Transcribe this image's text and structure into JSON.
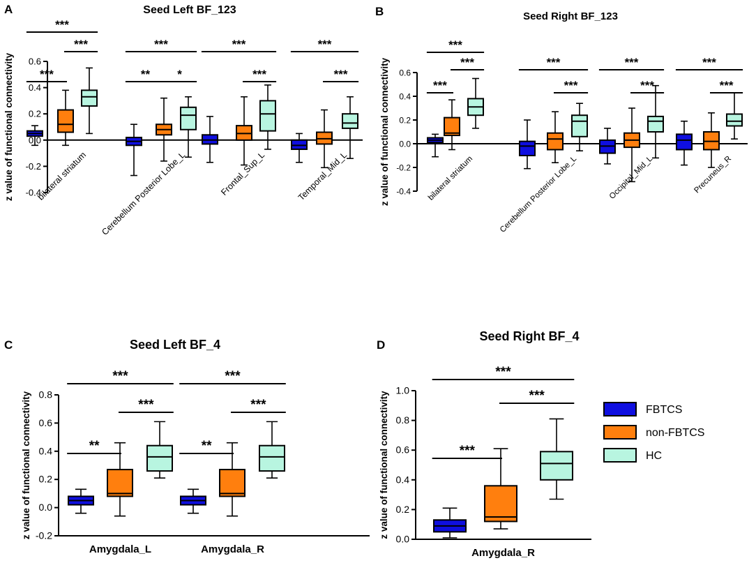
{
  "figure": {
    "legend": [
      {
        "name": "FBTCS",
        "color": "#0f0fe0"
      },
      {
        "name": "non-FBTCS",
        "color": "#ff7f0e"
      },
      {
        "name": "HC",
        "color": "#b8f5e0"
      }
    ]
  },
  "chart_data": [
    {
      "panel": "A",
      "type": "boxplot",
      "title": "Seed Left BF_123",
      "ylabel": "z value of functional connectivity",
      "ylim": [
        -0.4,
        0.6
      ],
      "yticks": [
        -0.4,
        -0.2,
        0.0,
        0.2,
        0.4,
        0.6
      ],
      "ytick_labels": [
        "-0.4",
        "-0.2",
        "0.0",
        "0.2",
        "0.4",
        "0.6"
      ],
      "categories": [
        "bilateral striatum",
        "Cerebellum Posterior Lobe_L",
        "Frontal_Sup_L",
        "Temporal_Mid_L"
      ],
      "series": [
        {
          "name": "FBTCS",
          "stats": [
            {
              "min": -0.04,
              "q1": 0.03,
              "median": 0.05,
              "q3": 0.07,
              "max": 0.11
            },
            {
              "min": -0.27,
              "q1": -0.04,
              "median": -0.01,
              "q3": 0.02,
              "max": 0.12
            },
            {
              "min": -0.17,
              "q1": -0.03,
              "median": 0.0,
              "q3": 0.04,
              "max": 0.18
            },
            {
              "min": -0.17,
              "q1": -0.07,
              "median": -0.04,
              "q3": 0.0,
              "max": 0.05
            }
          ]
        },
        {
          "name": "non-FBTCS",
          "stats": [
            {
              "min": -0.04,
              "q1": 0.06,
              "median": 0.12,
              "q3": 0.23,
              "max": 0.38
            },
            {
              "min": -0.16,
              "q1": 0.04,
              "median": 0.08,
              "q3": 0.12,
              "max": 0.32
            },
            {
              "min": -0.19,
              "q1": 0.0,
              "median": 0.05,
              "q3": 0.11,
              "max": 0.33
            },
            {
              "min": -0.21,
              "q1": -0.03,
              "median": 0.01,
              "q3": 0.06,
              "max": 0.23
            }
          ]
        },
        {
          "name": "HC",
          "stats": [
            {
              "min": 0.05,
              "q1": 0.26,
              "median": 0.33,
              "q3": 0.38,
              "max": 0.55
            },
            {
              "min": -0.13,
              "q1": 0.08,
              "median": 0.19,
              "q3": 0.25,
              "max": 0.33
            },
            {
              "min": -0.07,
              "q1": 0.07,
              "median": 0.2,
              "q3": 0.3,
              "max": 0.42
            },
            {
              "min": -0.14,
              "q1": 0.09,
              "median": 0.13,
              "q3": 0.2,
              "max": 0.33
            }
          ]
        }
      ],
      "annotations": [
        {
          "cat": 0,
          "from": 0,
          "to": 2,
          "label": "***",
          "level": 3
        },
        {
          "cat": 0,
          "from": 1,
          "to": 2,
          "label": "***",
          "level": 2
        },
        {
          "cat": 0,
          "from": 0,
          "to": 1,
          "label": "***",
          "level": 1
        },
        {
          "cat": 1,
          "from": 0,
          "to": 2,
          "label": "***",
          "level": 2
        },
        {
          "cat": 1,
          "from": 0,
          "to": 1,
          "label": "**",
          "level": 1
        },
        {
          "cat": 1,
          "from": 1,
          "to": 2,
          "label": "*",
          "level": 1
        },
        {
          "cat": 2,
          "from": 0,
          "to": 2,
          "label": "***",
          "level": 2
        },
        {
          "cat": 2,
          "from": 1,
          "to": 2,
          "label": "***",
          "level": 1
        },
        {
          "cat": 3,
          "from": 0,
          "to": 2,
          "label": "***",
          "level": 2
        },
        {
          "cat": 3,
          "from": 1,
          "to": 2,
          "label": "***",
          "level": 1
        }
      ]
    },
    {
      "panel": "B",
      "type": "boxplot",
      "title": "Seed Right BF_123",
      "ylabel": "z value of functional connectivity",
      "ylim": [
        -0.4,
        0.6
      ],
      "yticks": [
        -0.4,
        -0.2,
        0.0,
        0.2,
        0.4,
        0.6
      ],
      "ytick_labels": [
        "-0.4",
        "-0.2",
        "0.0",
        "0.2",
        "0.4",
        "0.6"
      ],
      "categories": [
        "bilateral striatum",
        "Cerebellum Posterior Lobe_L",
        "Occipital_Mid_L",
        "Precuneus_R"
      ],
      "series": [
        {
          "name": "FBTCS",
          "stats": [
            {
              "min": -0.11,
              "q1": 0.01,
              "median": 0.03,
              "q3": 0.05,
              "max": 0.08
            },
            {
              "min": -0.21,
              "q1": -0.1,
              "median": -0.02,
              "q3": 0.02,
              "max": 0.2
            },
            {
              "min": -0.17,
              "q1": -0.08,
              "median": -0.02,
              "q3": 0.03,
              "max": 0.13
            },
            {
              "min": -0.18,
              "q1": -0.05,
              "median": 0.03,
              "q3": 0.08,
              "max": 0.19
            }
          ]
        },
        {
          "name": "non-FBTCS",
          "stats": [
            {
              "min": -0.05,
              "q1": 0.07,
              "median": 0.09,
              "q3": 0.22,
              "max": 0.37
            },
            {
              "min": -0.16,
              "q1": -0.05,
              "median": 0.04,
              "q3": 0.09,
              "max": 0.27
            },
            {
              "min": -0.32,
              "q1": -0.03,
              "median": 0.03,
              "q3": 0.09,
              "max": 0.3
            },
            {
              "min": -0.2,
              "q1": -0.05,
              "median": 0.02,
              "q3": 0.1,
              "max": 0.26
            }
          ]
        },
        {
          "name": "HC",
          "stats": [
            {
              "min": 0.13,
              "q1": 0.24,
              "median": 0.31,
              "q3": 0.38,
              "max": 0.55
            },
            {
              "min": -0.06,
              "q1": 0.06,
              "median": 0.19,
              "q3": 0.24,
              "max": 0.34
            },
            {
              "min": -0.12,
              "q1": 0.1,
              "median": 0.19,
              "q3": 0.23,
              "max": 0.49
            },
            {
              "min": 0.04,
              "q1": 0.15,
              "median": 0.19,
              "q3": 0.25,
              "max": 0.43
            }
          ]
        }
      ],
      "annotations": [
        {
          "cat": 0,
          "from": 0,
          "to": 2,
          "label": "***",
          "level": 3
        },
        {
          "cat": 0,
          "from": 1,
          "to": 2,
          "label": "***",
          "level": 2
        },
        {
          "cat": 0,
          "from": 0,
          "to": 1,
          "label": "***",
          "level": 1
        },
        {
          "cat": 1,
          "from": 0,
          "to": 2,
          "label": "***",
          "level": 2
        },
        {
          "cat": 1,
          "from": 1,
          "to": 2,
          "label": "***",
          "level": 1
        },
        {
          "cat": 2,
          "from": 0,
          "to": 2,
          "label": "***",
          "level": 2
        },
        {
          "cat": 2,
          "from": 1,
          "to": 2,
          "label": "***",
          "level": 1
        },
        {
          "cat": 3,
          "from": 0,
          "to": 2,
          "label": "***",
          "level": 2
        },
        {
          "cat": 3,
          "from": 1,
          "to": 2,
          "label": "***",
          "level": 1
        }
      ]
    },
    {
      "panel": "C",
      "type": "boxplot",
      "title": "Seed Left BF_4",
      "ylabel": "z value of functional connectivity",
      "ylim": [
        -0.2,
        0.8
      ],
      "yticks": [
        -0.2,
        0.0,
        0.2,
        0.4,
        0.6,
        0.8
      ],
      "ytick_labels": [
        "-0.2",
        "0.0",
        "0.2",
        "0.4",
        "0.6",
        "0.8"
      ],
      "categories": [
        "Amygdala_L",
        "Amygdala_R"
      ],
      "series": [
        {
          "name": "FBTCS",
          "stats": [
            {
              "min": -0.04,
              "q1": 0.02,
              "median": 0.05,
              "q3": 0.08,
              "max": 0.13
            },
            {
              "min": -0.04,
              "q1": 0.02,
              "median": 0.05,
              "q3": 0.08,
              "max": 0.13
            }
          ]
        },
        {
          "name": "non-FBTCS",
          "stats": [
            {
              "min": -0.06,
              "q1": 0.08,
              "median": 0.1,
              "q3": 0.27,
              "max": 0.46
            },
            {
              "min": -0.06,
              "q1": 0.08,
              "median": 0.1,
              "q3": 0.27,
              "max": 0.46
            }
          ]
        },
        {
          "name": "HC",
          "stats": [
            {
              "min": 0.21,
              "q1": 0.26,
              "median": 0.36,
              "q3": 0.44,
              "max": 0.61
            },
            {
              "min": 0.21,
              "q1": 0.26,
              "median": 0.36,
              "q3": 0.44,
              "max": 0.61
            }
          ]
        }
      ],
      "annotations": [
        {
          "cat": 0,
          "from": 0,
          "to": 2,
          "label": "***",
          "level": 3
        },
        {
          "cat": 0,
          "from": 1,
          "to": 2,
          "label": "***",
          "level": 2
        },
        {
          "cat": 0,
          "from": 0,
          "to": 1,
          "label": "**",
          "level": 1
        },
        {
          "cat": 1,
          "from": 0,
          "to": 2,
          "label": "***",
          "level": 3
        },
        {
          "cat": 1,
          "from": 1,
          "to": 2,
          "label": "***",
          "level": 2
        },
        {
          "cat": 1,
          "from": 0,
          "to": 1,
          "label": "**",
          "level": 1
        }
      ]
    },
    {
      "panel": "D",
      "type": "boxplot",
      "title": "Seed Right BF_4",
      "ylabel": "z value of functional connectivity",
      "ylim": [
        0.0,
        1.0
      ],
      "yticks": [
        0.0,
        0.2,
        0.4,
        0.6,
        0.8,
        1.0
      ],
      "ytick_labels": [
        "0.0",
        "0.2",
        "0.4",
        "0.6",
        "0.8",
        "1.0"
      ],
      "categories": [
        "Amygdala_R"
      ],
      "series": [
        {
          "name": "FBTCS",
          "stats": [
            {
              "min": 0.01,
              "q1": 0.05,
              "median": 0.09,
              "q3": 0.13,
              "max": 0.21
            }
          ]
        },
        {
          "name": "non-FBTCS",
          "stats": [
            {
              "min": 0.07,
              "q1": 0.12,
              "median": 0.15,
              "q3": 0.36,
              "max": 0.61
            }
          ]
        },
        {
          "name": "HC",
          "stats": [
            {
              "min": 0.27,
              "q1": 0.4,
              "median": 0.51,
              "q3": 0.59,
              "max": 0.81
            }
          ]
        }
      ],
      "annotations": [
        {
          "cat": 0,
          "from": 0,
          "to": 2,
          "label": "***",
          "level": 3
        },
        {
          "cat": 0,
          "from": 1,
          "to": 2,
          "label": "***",
          "level": 2
        },
        {
          "cat": 0,
          "from": 0,
          "to": 1,
          "label": "***",
          "level": 1
        }
      ]
    }
  ]
}
